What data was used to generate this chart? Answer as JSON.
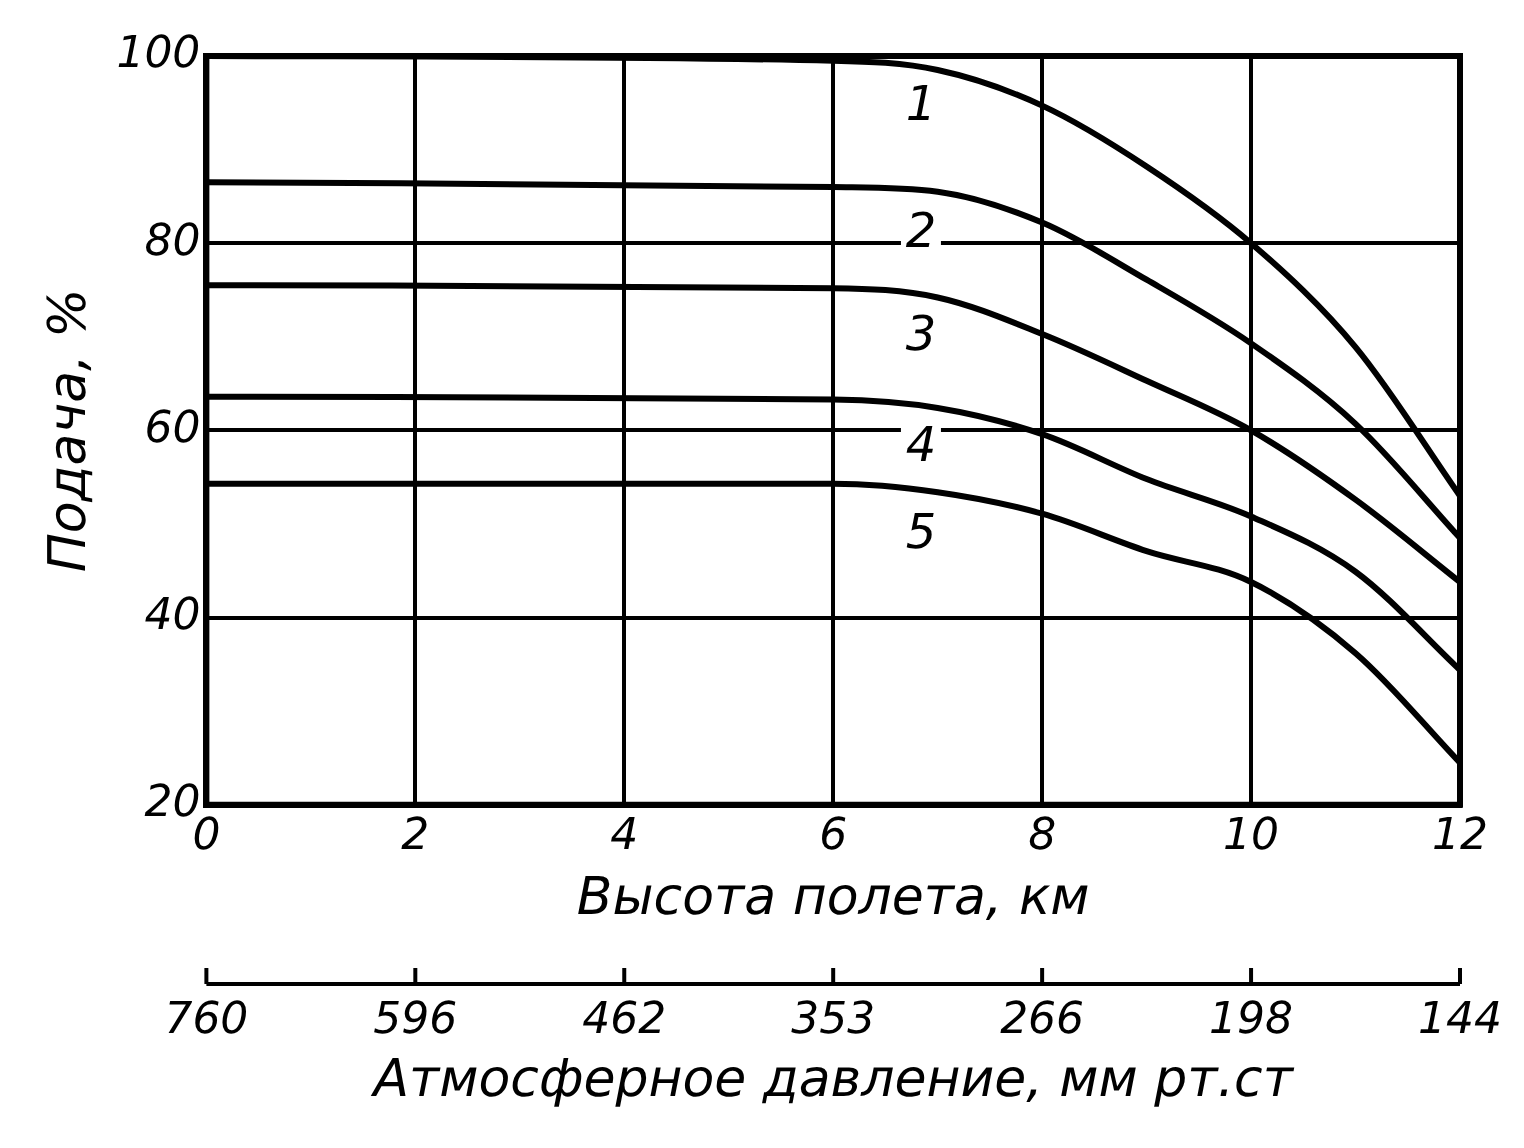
{
  "chart_data": {
    "type": "line",
    "xlabel": "Высота полета, км",
    "ylabel": "Подача, %",
    "x2label": "Атмосферное давление, мм рт.ст",
    "x": [
      0,
      6,
      7,
      8,
      9,
      10,
      11,
      12
    ],
    "series": [
      {
        "name": "1",
        "color": "#000000",
        "values": [
          100,
          99.5,
          98.5,
          94.7,
          88.2,
          80,
          68.9,
          53
        ]
      },
      {
        "name": "2",
        "color": "#000000",
        "values": [
          86.5,
          86,
          85.5,
          82.2,
          76.1,
          69.3,
          60.7,
          48.5
        ]
      },
      {
        "name": "3",
        "color": "#000000",
        "values": [
          75.5,
          75.2,
          74.2,
          70.3,
          65.3,
          60,
          52.6,
          43.8
        ]
      },
      {
        "name": "4",
        "color": "#000000",
        "values": [
          63.6,
          63.3,
          62.4,
          59.6,
          54.8,
          50.8,
          44.9,
          34.4
        ]
      },
      {
        "name": "5",
        "color": "#000000",
        "values": [
          54.3,
          54.3,
          53.4,
          51.1,
          47.1,
          43.8,
          36.2,
          24.5
        ]
      }
    ],
    "xlim": [
      0,
      12
    ],
    "xticks": [
      0,
      2,
      4,
      6,
      8,
      10,
      12
    ],
    "ylim": [
      20,
      100
    ],
    "yticks": [
      20,
      40,
      60,
      80,
      100
    ],
    "annotations": [
      "760",
      "596",
      "462",
      "353",
      "266",
      "198",
      "144"
    ],
    "grid": true,
    "legend": false,
    "marker": "none",
    "line_style": "solid"
  }
}
